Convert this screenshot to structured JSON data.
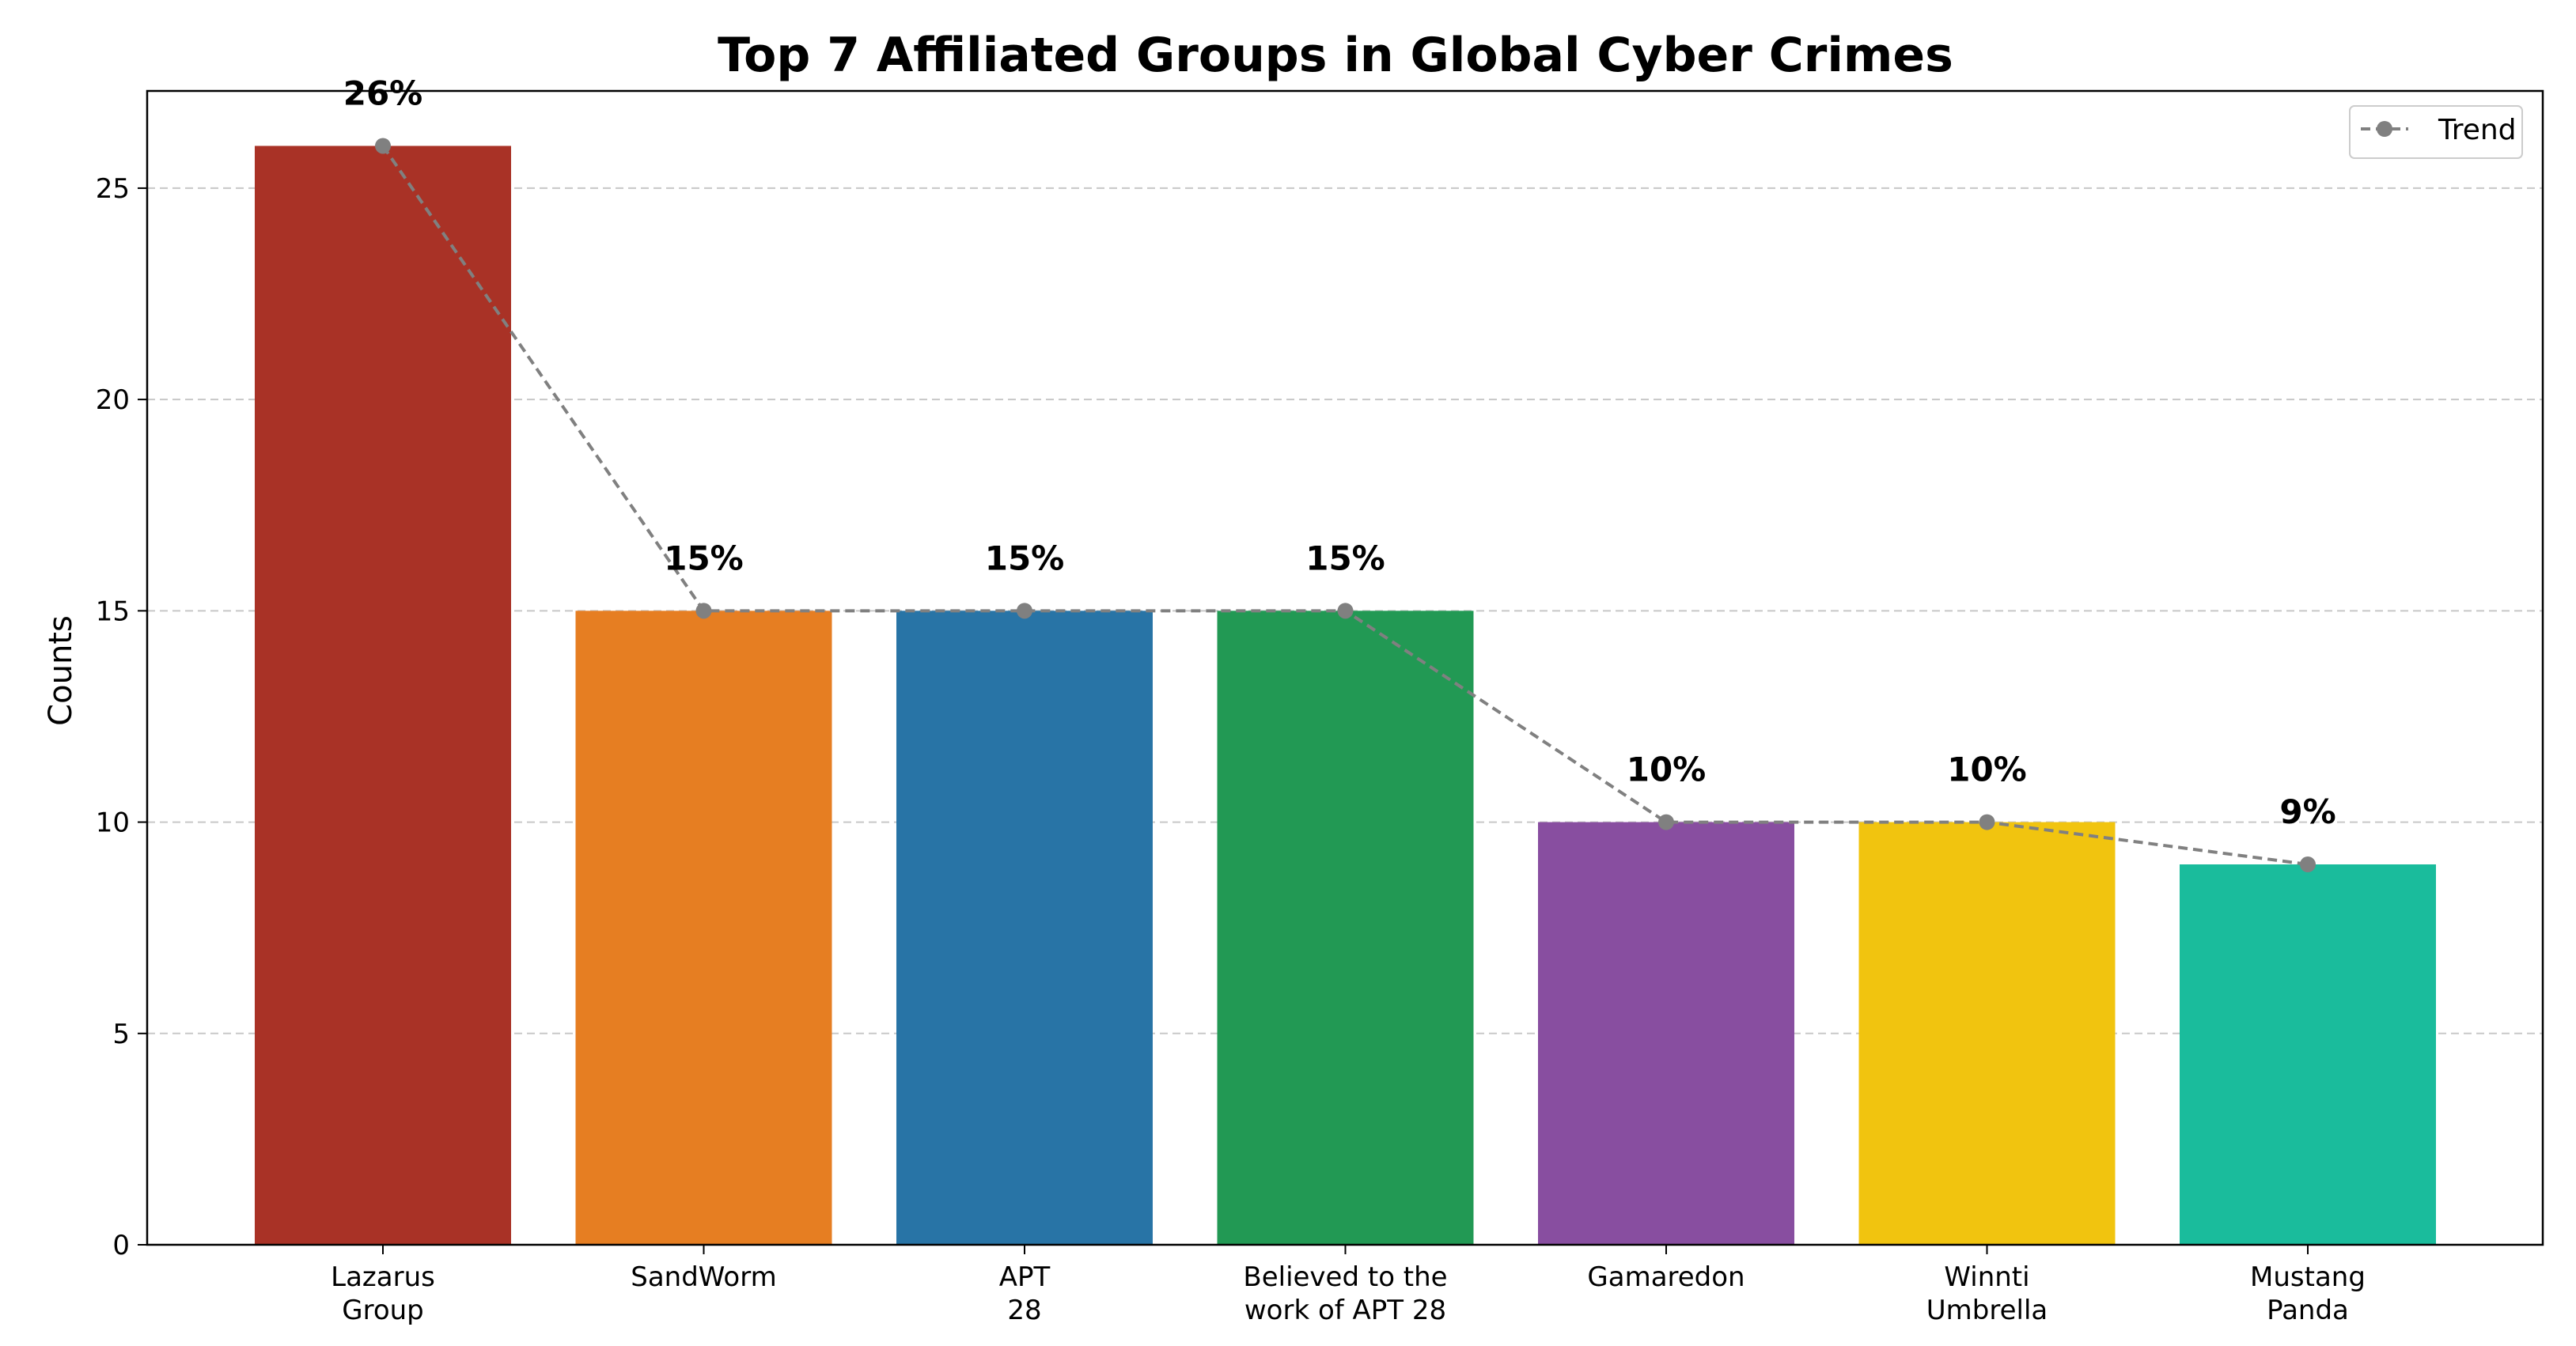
{
  "chart_data": {
    "type": "bar",
    "title": "Top 7 Affiliated Groups in Global Cyber Crimes",
    "xlabel": "",
    "ylabel": "Counts",
    "ylim": [
      0,
      27.3
    ],
    "yticks": [
      0,
      5,
      10,
      15,
      20,
      25
    ],
    "grid": "y-dashed",
    "categories": [
      [
        "Lazarus",
        "Group"
      ],
      [
        "SandWorm"
      ],
      [
        "APT",
        "28"
      ],
      [
        "Believed to the",
        "work of APT 28"
      ],
      [
        "Gamaredon"
      ],
      [
        "Winnti",
        "Umbrella"
      ],
      [
        "Mustang",
        "Panda"
      ]
    ],
    "values": [
      26,
      15,
      15,
      15,
      10,
      10,
      9
    ],
    "data_labels": [
      "26%",
      "15%",
      "15%",
      "15%",
      "10%",
      "10%",
      "9%"
    ],
    "colors": [
      "#a93226",
      "#e67e22",
      "#2874a6",
      "#229954",
      "#884ea0",
      "#f1c40f",
      "#1abc9c"
    ],
    "trend": {
      "name": "Trend",
      "color": "#808080",
      "style": "dashed-with-markers"
    },
    "legend_position": "top-right"
  }
}
